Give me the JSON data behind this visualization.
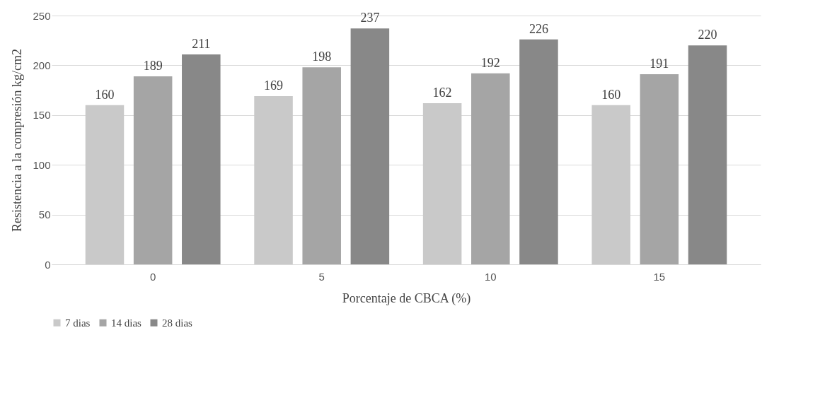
{
  "chart_data": {
    "type": "bar",
    "xlabel": "Porcentaje de CBCA (%)",
    "ylabel": "Resistencia a la compresión kg/cm2",
    "categories": [
      "0",
      "5",
      "10",
      "15"
    ],
    "series": [
      {
        "name": "7 dias",
        "color": "#c9c9c9",
        "values": [
          160,
          169,
          162,
          160
        ]
      },
      {
        "name": "14 dias",
        "color": "#a5a5a5",
        "values": [
          189,
          198,
          192,
          191
        ]
      },
      {
        "name": "28 dias",
        "color": "#888888",
        "values": [
          211,
          237,
          226,
          220
        ]
      }
    ],
    "ylim": [
      0,
      250
    ],
    "yticks": [
      0,
      50,
      100,
      150,
      200,
      250
    ],
    "grid": "y",
    "legend": "bottom",
    "data_labels": true
  }
}
